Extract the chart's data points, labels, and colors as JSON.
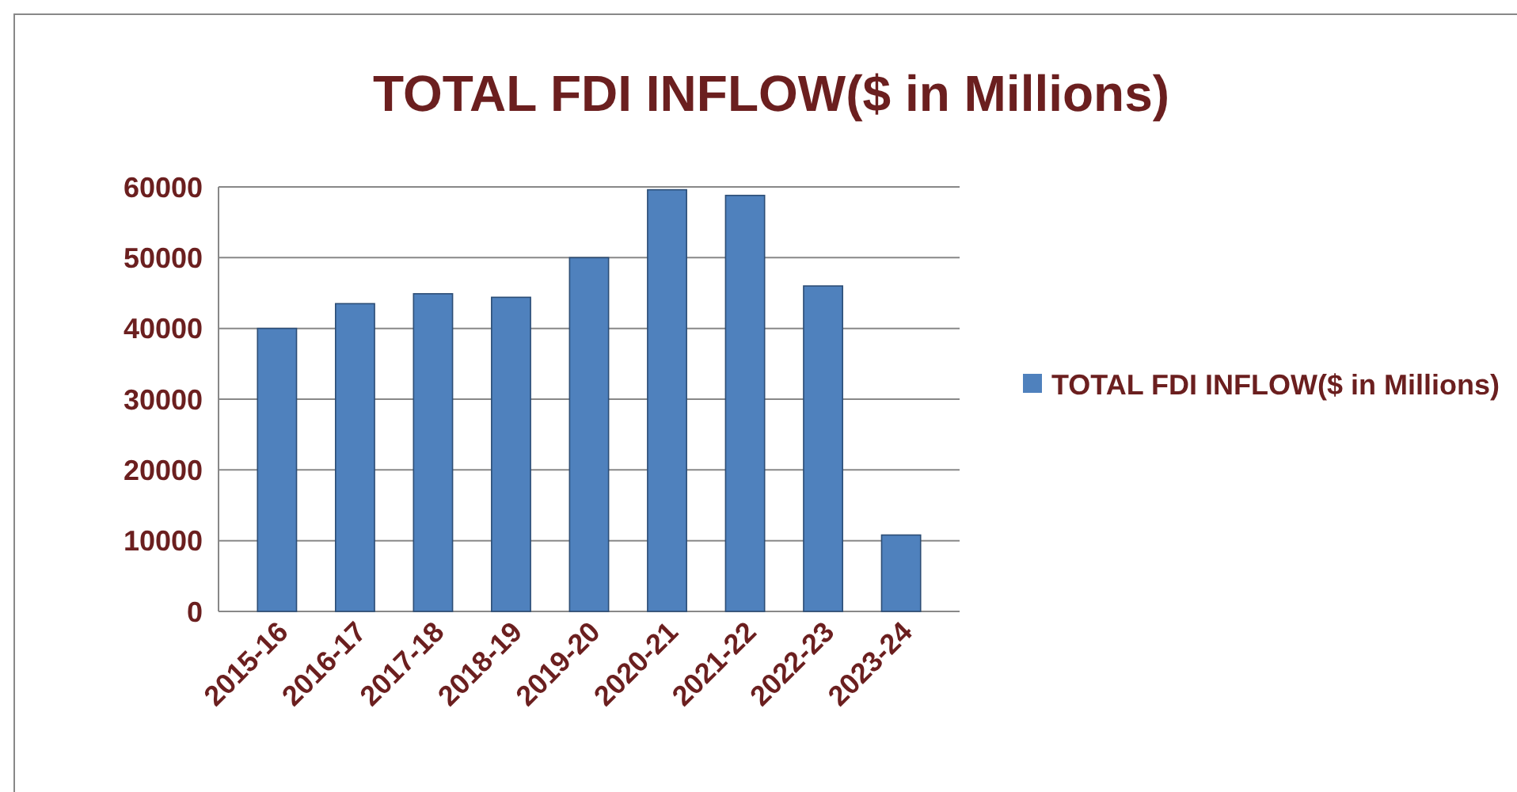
{
  "chart_data": {
    "type": "bar",
    "title": "TOTAL FDI INFLOW($ in Millions)",
    "categories": [
      "2015-16",
      "2016-17",
      "2017-18",
      "2018-19",
      "2019-20",
      "2020-21",
      "2021-22",
      "2022-23",
      "2023-24"
    ],
    "series": [
      {
        "name": "TOTAL FDI INFLOW($ in Millions)",
        "color": "#4f81bd",
        "values": [
          40000,
          43500,
          44900,
          44400,
          50000,
          59600,
          58800,
          46000,
          10800
        ]
      }
    ],
    "ylim": [
      0,
      60000
    ],
    "yticks": [
      0,
      10000,
      20000,
      30000,
      40000,
      50000,
      60000
    ],
    "grid": "y",
    "legend": "right"
  }
}
